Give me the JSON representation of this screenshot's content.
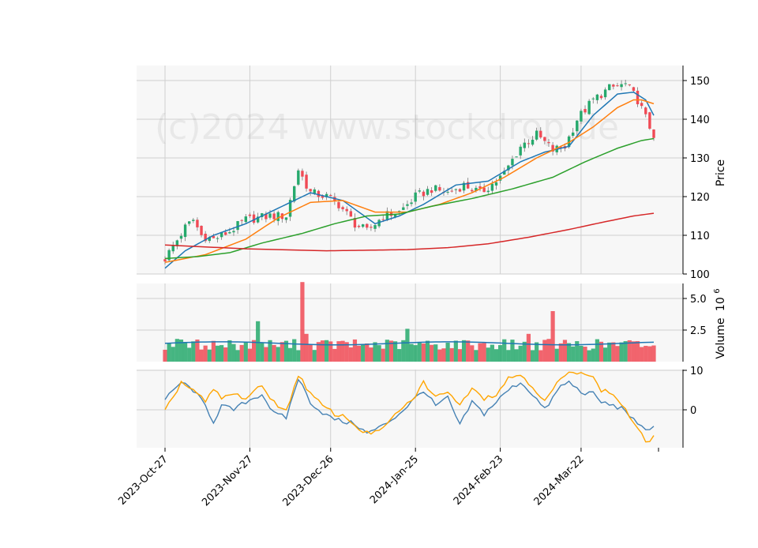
{
  "watermark": "(c)2024 www.stockdrop.de",
  "colors": {
    "panel_bg": "#f7f7f7",
    "grid": "#cfcfcf",
    "up": "#26a96c",
    "down": "#f04a55",
    "ma_fast": "#1f77b4",
    "ma_mid": "#ff7f0e",
    "ma_slow": "#2ca02c",
    "ma_long": "#d62728",
    "vol_ma": "#1f77b4",
    "osc_a": "#4682b4",
    "osc_b": "#ffa500"
  },
  "chart_data": {
    "type": "candlestick",
    "x_ticks": [
      "2023-Oct-27",
      "2023-Nov-27",
      "2023-Dec-26",
      "2024-Jan-25",
      "2024-Feb-23",
      "2024-Mar-22"
    ],
    "price": {
      "ylabel": "Price",
      "ylim": [
        100,
        152
      ],
      "yticks": [
        100,
        110,
        120,
        130,
        140,
        150
      ],
      "close_keypoints": [
        [
          0,
          104
        ],
        [
          5,
          112
        ],
        [
          7,
          114
        ],
        [
          9,
          110
        ],
        [
          12,
          109
        ],
        [
          16,
          111
        ],
        [
          20,
          114
        ],
        [
          26,
          115
        ],
        [
          30,
          115
        ],
        [
          33,
          127
        ],
        [
          36,
          121
        ],
        [
          40,
          120
        ],
        [
          43,
          118
        ],
        [
          47,
          113
        ],
        [
          50,
          111
        ],
        [
          54,
          115
        ],
        [
          58,
          116
        ],
        [
          62,
          120
        ],
        [
          66,
          122
        ],
        [
          70,
          121
        ],
        [
          74,
          123
        ],
        [
          78,
          121
        ],
        [
          82,
          124
        ],
        [
          84,
          126
        ],
        [
          88,
          133
        ],
        [
          92,
          136
        ],
        [
          96,
          132
        ],
        [
          99,
          133
        ],
        [
          102,
          140
        ],
        [
          106,
          145
        ],
        [
          110,
          148
        ],
        [
          114,
          149
        ],
        [
          117,
          145
        ],
        [
          120,
          138
        ],
        [
          121,
          136
        ]
      ],
      "series_names": [],
      "ma_lines": [
        {
          "key": "ma_fast",
          "keypoints": [
            [
              0,
              101.5
            ],
            [
              5,
              106
            ],
            [
              12,
              110
            ],
            [
              20,
              113
            ],
            [
              28,
              117
            ],
            [
              36,
              121
            ],
            [
              44,
              119
            ],
            [
              52,
              113
            ],
            [
              58,
              115
            ],
            [
              64,
              118
            ],
            [
              72,
              123
            ],
            [
              80,
              124
            ],
            [
              88,
              129
            ],
            [
              94,
              131.5
            ],
            [
              100,
              133
            ],
            [
              106,
              141
            ],
            [
              112,
              146.5
            ],
            [
              116,
              147
            ],
            [
              119,
              145
            ],
            [
              121,
              141
            ]
          ]
        },
        {
          "key": "ma_mid",
          "keypoints": [
            [
              0,
              103
            ],
            [
              10,
              105
            ],
            [
              20,
              109
            ],
            [
              28,
              114.5
            ],
            [
              36,
              118.5
            ],
            [
              44,
              119
            ],
            [
              52,
              116
            ],
            [
              60,
              116
            ],
            [
              68,
              118
            ],
            [
              76,
              121
            ],
            [
              84,
              125
            ],
            [
              92,
              130
            ],
            [
              100,
              134
            ],
            [
              106,
              138
            ],
            [
              112,
              143
            ],
            [
              116,
              145
            ],
            [
              118,
              145
            ],
            [
              121,
              144
            ]
          ]
        },
        {
          "key": "ma_slow",
          "keypoints": [
            [
              0,
              104
            ],
            [
              8,
              104.5
            ],
            [
              16,
              105.5
            ],
            [
              24,
              108
            ],
            [
              34,
              110.5
            ],
            [
              42,
              113
            ],
            [
              50,
              115
            ],
            [
              58,
              115.5
            ],
            [
              66,
              117.5
            ],
            [
              76,
              119.5
            ],
            [
              86,
              122
            ],
            [
              96,
              125
            ],
            [
              104,
              129
            ],
            [
              112,
              132.5
            ],
            [
              118,
              134.5
            ],
            [
              121,
              135
            ]
          ]
        },
        {
          "key": "ma_long",
          "keypoints": [
            [
              0,
              107.5
            ],
            [
              20,
              106.5
            ],
            [
              40,
              106
            ],
            [
              60,
              106.3
            ],
            [
              70,
              106.8
            ],
            [
              80,
              107.8
            ],
            [
              90,
              109.5
            ],
            [
              100,
              111.5
            ],
            [
              108,
              113.3
            ],
            [
              116,
              115
            ],
            [
              121,
              115.7
            ]
          ]
        }
      ]
    },
    "volume": {
      "ylabel": "Volume",
      "unit_label": "10",
      "unit_exponent": "6",
      "yticks": [
        2.5,
        5.0
      ],
      "ylim": [
        0,
        6.5
      ],
      "spikes": [
        [
          3,
          1.8
        ],
        [
          23,
          3.2
        ],
        [
          34,
          6.3
        ],
        [
          35,
          2.2
        ],
        [
          60,
          2.6
        ],
        [
          90,
          2.2
        ],
        [
          96,
          4.0
        ]
      ],
      "ma_level": 1.45
    },
    "oscillator": {
      "yticks": [
        10,
        0
      ],
      "ylim": [
        -10,
        10
      ],
      "line_a_keypoints": [
        [
          0,
          2.5
        ],
        [
          4,
          7
        ],
        [
          7,
          5
        ],
        [
          10,
          1
        ],
        [
          12,
          -3
        ],
        [
          14,
          1
        ],
        [
          17,
          0
        ],
        [
          20,
          2
        ],
        [
          24,
          4
        ],
        [
          27,
          -1
        ],
        [
          30,
          -2
        ],
        [
          33,
          8
        ],
        [
          36,
          2
        ],
        [
          38,
          0
        ],
        [
          41,
          -2
        ],
        [
          44,
          -3
        ],
        [
          47,
          -3.5
        ],
        [
          50,
          -6
        ],
        [
          54,
          -4
        ],
        [
          58,
          -1
        ],
        [
          61,
          2
        ],
        [
          64,
          5
        ],
        [
          67,
          1
        ],
        [
          70,
          3
        ],
        [
          73,
          -4
        ],
        [
          76,
          2
        ],
        [
          79,
          -1
        ],
        [
          82,
          2
        ],
        [
          85,
          5
        ],
        [
          88,
          7
        ],
        [
          91,
          4
        ],
        [
          94,
          0
        ],
        [
          96,
          3
        ],
        [
          98,
          6
        ],
        [
          100,
          7
        ],
        [
          103,
          4.5
        ],
        [
          106,
          4
        ],
        [
          108,
          2
        ],
        [
          111,
          1
        ],
        [
          114,
          0
        ],
        [
          117,
          -4
        ],
        [
          119,
          -5
        ],
        [
          121,
          -4
        ]
      ],
      "line_b_keypoints": [
        [
          0,
          -0.5
        ],
        [
          4,
          7
        ],
        [
          7,
          5
        ],
        [
          10,
          2
        ],
        [
          12,
          5
        ],
        [
          14,
          3
        ],
        [
          17,
          4
        ],
        [
          20,
          3
        ],
        [
          24,
          6
        ],
        [
          27,
          2
        ],
        [
          30,
          -0.5
        ],
        [
          33,
          9
        ],
        [
          36,
          4
        ],
        [
          39,
          1
        ],
        [
          42,
          -1
        ],
        [
          45,
          -2
        ],
        [
          47,
          -4
        ],
        [
          50,
          -6
        ],
        [
          54,
          -5
        ],
        [
          58,
          0
        ],
        [
          61,
          2
        ],
        [
          64,
          7
        ],
        [
          67,
          3
        ],
        [
          70,
          5
        ],
        [
          73,
          1
        ],
        [
          76,
          6
        ],
        [
          79,
          3
        ],
        [
          82,
          4
        ],
        [
          85,
          8
        ],
        [
          88,
          9
        ],
        [
          91,
          6
        ],
        [
          94,
          2
        ],
        [
          96,
          5
        ],
        [
          98,
          8
        ],
        [
          100,
          9
        ],
        [
          103,
          10
        ],
        [
          106,
          8
        ],
        [
          108,
          5
        ],
        [
          111,
          4
        ],
        [
          114,
          0
        ],
        [
          117,
          -5
        ],
        [
          119,
          -8
        ],
        [
          121,
          -7
        ]
      ]
    }
  }
}
